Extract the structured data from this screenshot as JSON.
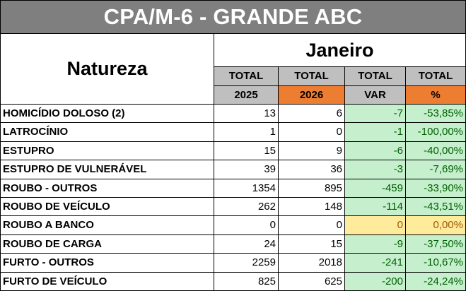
{
  "title": "CPA/M-6 - GRANDE ABC",
  "row_header": "Natureza",
  "month": "Janeiro",
  "columns": [
    {
      "top": "TOTAL",
      "bottom": "2025"
    },
    {
      "top": "TOTAL",
      "bottom": "2026"
    },
    {
      "top": "TOTAL",
      "bottom": "VAR"
    },
    {
      "top": "TOTAL",
      "bottom": "%"
    }
  ],
  "colors": {
    "header_grey": "#bfbfbf",
    "year_2026_orange": "#ed7d31",
    "decrease_fill": "#c6efce",
    "neutral_fill": "#ffeb9c"
  },
  "rows": [
    {
      "name": "HOMICÍDIO DOLOSO (2)",
      "y2025": "13",
      "y2026": "6",
      "var": "-7",
      "pct": "-53,85%",
      "status": "decrease"
    },
    {
      "name": "LATROCÍNIO",
      "y2025": "1",
      "y2026": "0",
      "var": "-1",
      "pct": "-100,00%",
      "status": "decrease"
    },
    {
      "name": "ESTUPRO",
      "y2025": "15",
      "y2026": "9",
      "var": "-6",
      "pct": "-40,00%",
      "status": "decrease"
    },
    {
      "name": "ESTUPRO DE VULNERÁVEL",
      "y2025": "39",
      "y2026": "36",
      "var": "-3",
      "pct": "-7,69%",
      "status": "decrease"
    },
    {
      "name": "ROUBO - OUTROS",
      "y2025": "1354",
      "y2026": "895",
      "var": "-459",
      "pct": "-33,90%",
      "status": "decrease"
    },
    {
      "name": "ROUBO DE VEÍCULO",
      "y2025": "262",
      "y2026": "148",
      "var": "-114",
      "pct": "-43,51%",
      "status": "decrease"
    },
    {
      "name": "ROUBO A BANCO",
      "y2025": "0",
      "y2026": "0",
      "var": "0",
      "pct": "0,00%",
      "status": "neutral"
    },
    {
      "name": "ROUBO DE CARGA",
      "y2025": "24",
      "y2026": "15",
      "var": "-9",
      "pct": "-37,50%",
      "status": "decrease"
    },
    {
      "name": "FURTO - OUTROS",
      "y2025": "2259",
      "y2026": "2018",
      "var": "-241",
      "pct": "-10,67%",
      "status": "decrease"
    },
    {
      "name": "FURTO DE VEÍCULO",
      "y2025": "825",
      "y2026": "625",
      "var": "-200",
      "pct": "-24,24%",
      "status": "decrease"
    }
  ]
}
